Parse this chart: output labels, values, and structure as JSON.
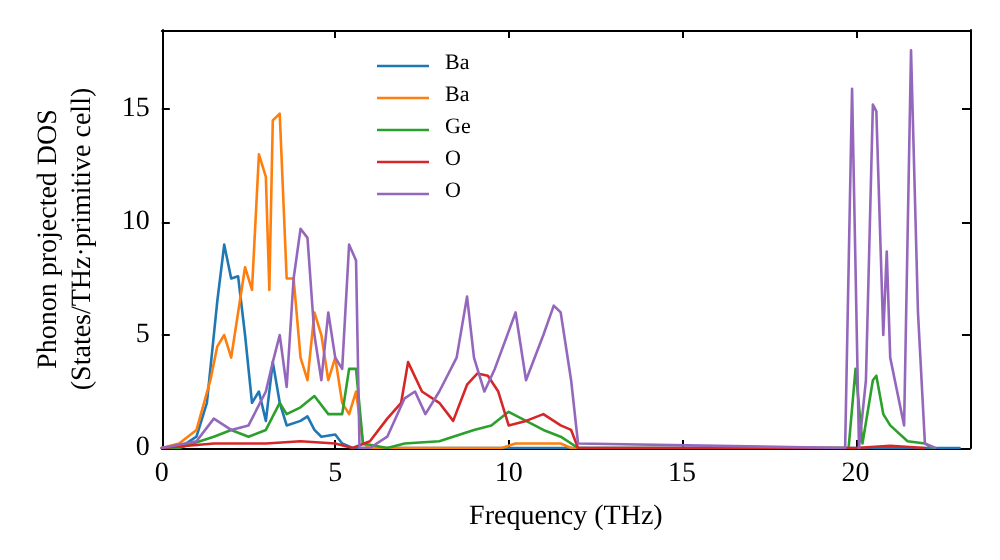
{
  "chart_data": {
    "type": "line",
    "xlabel": "Frequency (THz)",
    "ylabel": "Phonon projected DOS\n(States/THz·primitive cell)",
    "xlim": [
      0,
      23.3
    ],
    "ylim": [
      0,
      18.5
    ],
    "xticks": [
      0,
      5,
      10,
      15,
      20
    ],
    "yticks": [
      0,
      5,
      10,
      15
    ],
    "grid": false,
    "legend": "top",
    "marker": "none",
    "line_style": "solid",
    "series": [
      {
        "name": "Ba",
        "color": "#1f77b4",
        "x": [
          0,
          0.5,
          1.0,
          1.3,
          1.6,
          1.8,
          2.0,
          2.2,
          2.4,
          2.6,
          2.8,
          3.0,
          3.2,
          3.4,
          3.6,
          4.0,
          4.2,
          4.4,
          4.6,
          5.0,
          5.2,
          5.5,
          6,
          12,
          20,
          23
        ],
        "values": [
          0,
          0,
          0.5,
          2,
          6.5,
          9,
          7.5,
          7.6,
          5,
          2,
          2.5,
          1.2,
          3.8,
          2,
          1.0,
          1.2,
          1.4,
          0.8,
          0.5,
          0.6,
          0.2,
          0,
          0,
          0,
          0,
          0
        ]
      },
      {
        "name": "Ba",
        "color": "#ff7f0e",
        "x": [
          0,
          0.5,
          1.0,
          1.4,
          1.6,
          1.8,
          2.0,
          2.2,
          2.4,
          2.6,
          2.8,
          3.0,
          3.1,
          3.2,
          3.4,
          3.6,
          3.8,
          4.0,
          4.2,
          4.4,
          4.6,
          4.8,
          5.0,
          5.2,
          5.4,
          5.6,
          5.8,
          6,
          9.8,
          10.2,
          11.5,
          11.8,
          12
        ],
        "values": [
          0,
          0.2,
          0.8,
          3,
          4.5,
          5,
          4,
          6,
          8,
          7,
          13,
          12,
          7,
          14.5,
          14.8,
          7.5,
          7.5,
          4,
          3,
          6,
          5,
          3,
          4,
          2,
          1.5,
          2.5,
          0.2,
          0,
          0,
          0.2,
          0.2,
          0,
          0
        ]
      },
      {
        "name": "Ge",
        "color": "#2ca02c",
        "x": [
          0,
          0.5,
          1.5,
          2.0,
          2.5,
          3.0,
          3.4,
          3.6,
          4.0,
          4.4,
          4.8,
          5.2,
          5.4,
          5.6,
          5.8,
          6.5,
          7,
          8,
          9,
          9.5,
          10,
          10.5,
          11,
          11.5,
          12,
          19.8,
          20.0,
          20.2,
          20.5,
          20.6,
          20.8,
          21,
          21.5,
          22,
          22.2
        ],
        "values": [
          0,
          0,
          0.5,
          0.8,
          0.5,
          0.8,
          2,
          1.5,
          1.8,
          2.3,
          1.5,
          1.5,
          3.5,
          3.5,
          0.2,
          0,
          0.2,
          0.3,
          0.8,
          1.0,
          1.6,
          1.2,
          0.8,
          0.5,
          0,
          0,
          3.5,
          0.2,
          3,
          3.2,
          1.5,
          1,
          0.3,
          0.2,
          0
        ]
      },
      {
        "name": "O",
        "color": "#d62728",
        "x": [
          0,
          1.5,
          3,
          4,
          5,
          5.5,
          6,
          6.5,
          6.9,
          7.1,
          7.5,
          8,
          8.4,
          8.8,
          9.1,
          9.4,
          9.7,
          10,
          10.5,
          11,
          11.5,
          11.8,
          12,
          20,
          21,
          22
        ],
        "values": [
          0,
          0.2,
          0.2,
          0.3,
          0.2,
          0,
          0.3,
          1.3,
          2,
          3.8,
          2.5,
          2.0,
          1.2,
          2.8,
          3.3,
          3.2,
          2.5,
          1,
          1.2,
          1.5,
          1.0,
          0.8,
          0,
          0,
          0.1,
          0
        ]
      },
      {
        "name": "O",
        "color": "#9467bd",
        "x": [
          0,
          1,
          1.5,
          2,
          2.5,
          3,
          3.2,
          3.4,
          3.6,
          3.8,
          4.0,
          4.2,
          4.4,
          4.6,
          4.8,
          5.0,
          5.2,
          5.4,
          5.6,
          5.7,
          6,
          6.5,
          7,
          7.3,
          7.6,
          8,
          8.5,
          8.8,
          9.0,
          9.3,
          9.6,
          10.2,
          10.5,
          11,
          11.3,
          11.5,
          11.8,
          12,
          19.7,
          19.9,
          20.1,
          20.3,
          20.5,
          20.6,
          20.8,
          20.9,
          21.0,
          21.4,
          21.6,
          21.8,
          22.0,
          22.3
        ],
        "values": [
          0,
          0.3,
          1.3,
          0.8,
          1.0,
          2.5,
          3.8,
          5,
          2.7,
          7.5,
          9.7,
          9.3,
          5,
          3,
          6,
          4,
          3.5,
          9.0,
          8.3,
          0,
          0,
          0.5,
          2.2,
          2.5,
          1.5,
          2.5,
          4,
          6.7,
          4,
          2.5,
          3.5,
          6,
          3,
          5,
          6.3,
          6,
          3,
          0.2,
          0,
          15.9,
          0,
          3,
          15.2,
          14.9,
          5,
          8.7,
          4,
          1,
          17.6,
          6,
          0.2,
          0
        ]
      }
    ]
  }
}
